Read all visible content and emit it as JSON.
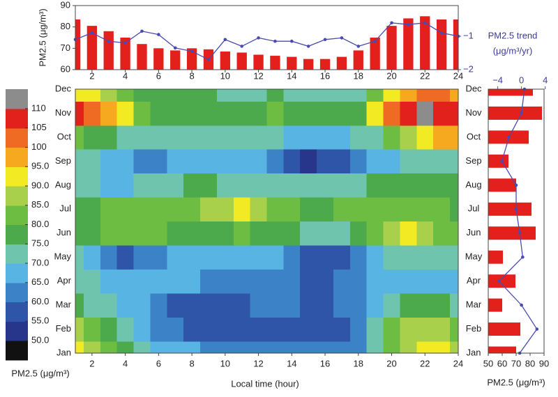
{
  "chart_data": [
    {
      "type": "bar",
      "x": [
        1,
        2,
        3,
        4,
        5,
        6,
        7,
        8,
        9,
        10,
        11,
        12,
        13,
        14,
        15,
        16,
        17,
        18,
        19,
        20,
        21,
        22,
        23,
        24
      ],
      "xlim": [
        1,
        24
      ],
      "xticks": [
        2,
        4,
        6,
        8,
        10,
        12,
        14,
        16,
        18,
        20,
        22,
        24
      ],
      "ylabel": "PM2.5 (μg/m³)",
      "ylim": [
        60,
        90
      ],
      "yticks": [
        60,
        70,
        80,
        90
      ],
      "y2lim": [
        -2,
        0
      ],
      "y2ticks": [
        {
          "value": -1,
          "label": "−1"
        },
        {
          "value": -2,
          "label": "−2"
        }
      ],
      "series": [
        {
          "color": "#e3201c",
          "values": [
            83.5,
            80.5,
            78,
            75,
            72,
            70,
            69,
            70,
            69.5,
            68.5,
            68,
            67,
            66.5,
            66,
            65,
            65,
            66,
            69,
            75,
            80.5,
            84,
            85,
            83.5,
            83.5
          ]
        },
        {
          "name": "PM2.5 trend",
          "unit": "(μg/m³/yr)",
          "type": "line",
          "axis": "y2",
          "color": "#4a4ab0",
          "values": [
            -1.1,
            -0.9,
            -1.15,
            -1.2,
            -0.85,
            -0.95,
            -1.35,
            -1.45,
            -1.7,
            -1.1,
            -1.3,
            -1.05,
            -1.15,
            -1.15,
            -1.3,
            -1.1,
            -1.05,
            -1.3,
            -1.15,
            -0.6,
            -0.65,
            -0.6,
            -0.9,
            -1.0
          ]
        }
      ]
    },
    {
      "type": "contour",
      "x": [
        1,
        2,
        3,
        4,
        5,
        6,
        7,
        8,
        9,
        10,
        11,
        12,
        13,
        14,
        15,
        16,
        17,
        18,
        19,
        20,
        21,
        22,
        23,
        24
      ],
      "xlim": [
        1,
        24
      ],
      "xticks": [
        2,
        4,
        6,
        8,
        10,
        12,
        14,
        16,
        18,
        20,
        22,
        24
      ],
      "xlabel": "Local time (hour)",
      "categories": [
        "Jan",
        "Feb",
        "Mar",
        "Apr",
        "May",
        "Jun",
        "Jul",
        "Aug",
        "Sep",
        "Oct",
        "Nov",
        "Dec"
      ],
      "z": [
        [
          92,
          88,
          80,
          76,
          72,
          68,
          66,
          65,
          64,
          63,
          64,
          64,
          63,
          62,
          62,
          62,
          63,
          64,
          72,
          82,
          88,
          91,
          90,
          86
        ],
        [
          86,
          82,
          76,
          72,
          68,
          64,
          60,
          58,
          58,
          58,
          58,
          57,
          57,
          57,
          56,
          57,
          58,
          62,
          72,
          80,
          85,
          86,
          85,
          82
        ],
        [
          76,
          74,
          70,
          68,
          66,
          62,
          58,
          58,
          58,
          58,
          58,
          60,
          60,
          60,
          58,
          58,
          60,
          62,
          68,
          72,
          75,
          76,
          75,
          74
        ],
        [
          72,
          70,
          68,
          66,
          66,
          66,
          66,
          66,
          64,
          64,
          64,
          64,
          64,
          60,
          58,
          58,
          62,
          64,
          66,
          68,
          68,
          68,
          68,
          68
        ],
        [
          71,
          66,
          60,
          58,
          60,
          64,
          66,
          68,
          68,
          67,
          66,
          66,
          65,
          60,
          57,
          57,
          58,
          64,
          68,
          70,
          70,
          71,
          72,
          72
        ],
        [
          76,
          78,
          80,
          82,
          82,
          80,
          78,
          78,
          78,
          78,
          80,
          79,
          78,
          76,
          74,
          74,
          74,
          76,
          80,
          86,
          90,
          88,
          84,
          80
        ],
        [
          76,
          78,
          80,
          82,
          82,
          82,
          82,
          84,
          86,
          88,
          90,
          86,
          82,
          80,
          78,
          78,
          80,
          82,
          82,
          84,
          84,
          82,
          80,
          78
        ],
        [
          72,
          70,
          68,
          68,
          70,
          72,
          74,
          75,
          75,
          74,
          74,
          72,
          70,
          70,
          72,
          72,
          72,
          74,
          76,
          76,
          76,
          76,
          76,
          76
        ],
        [
          72,
          70,
          67,
          65,
          64,
          64,
          65,
          66,
          66,
          66,
          66,
          65,
          62,
          57,
          54,
          55,
          57,
          62,
          66,
          68,
          70,
          72,
          72,
          72
        ],
        [
          82,
          78,
          76,
          74,
          72,
          70,
          70,
          70,
          70,
          70,
          70,
          70,
          70,
          68,
          67,
          67,
          68,
          70,
          74,
          80,
          86,
          92,
          96,
          97
        ],
        [
          105,
          104,
          98,
          90,
          82,
          78,
          78,
          78,
          77,
          77,
          76,
          78,
          82,
          77,
          76,
          76,
          76,
          78,
          90,
          100,
          106,
          112,
          108,
          106
        ],
        [
          92,
          90,
          86,
          82,
          78,
          76,
          76,
          76,
          75,
          72,
          70,
          72,
          76,
          74,
          72,
          72,
          72,
          74,
          82,
          92,
          98,
          100,
          100,
          98
        ]
      ],
      "colorbar": {
        "label": "PM2.5 (μg/m³)",
        "levels": [
          {
            "value": 50,
            "label": "50.0"
          },
          {
            "value": 55,
            "label": "55.0"
          },
          {
            "value": 60,
            "label": "60.0"
          },
          {
            "value": 65,
            "label": "65.0"
          },
          {
            "value": 70,
            "label": "70.0"
          },
          {
            "value": 75,
            "label": "75.0"
          },
          {
            "value": 80,
            "label": "80.0"
          },
          {
            "value": 85,
            "label": "85.0"
          },
          {
            "value": 90,
            "label": "90.0"
          },
          {
            "value": 95,
            "label": "95.0"
          },
          100,
          105,
          110
        ],
        "colors": [
          "#111111",
          "#27358a",
          "#2f55a8",
          "#3c82c6",
          "#58b4e2",
          "#6ec4ad",
          "#4caa4c",
          "#6dbd42",
          "#a9d04a",
          "#f2ea22",
          "#f6a81e",
          "#ef6a22",
          "#e2201c",
          "#8c8c8c"
        ]
      }
    },
    {
      "type": "bar",
      "orientation": "horizontal",
      "categories": [
        "Jan",
        "Feb",
        "Mar",
        "Apr",
        "May",
        "Jun",
        "Jul",
        "Aug",
        "Sep",
        "Oct",
        "Nov",
        "Dec"
      ],
      "xlabel": "PM2.5 (μg/m³)",
      "xlim": [
        50,
        90
      ],
      "xticks": [
        50,
        60,
        70,
        80,
        90
      ],
      "x2lim": [
        -5.6,
        3.8
      ],
      "x2ticks": [
        {
          "value": -4,
          "label": "−4"
        },
        0,
        4
      ],
      "series": [
        {
          "color": "#e3201c",
          "values": [
            70,
            73,
            60,
            69.5,
            60.5,
            84,
            81,
            70,
            64.5,
            79,
            88.5,
            82
          ]
        },
        {
          "type": "line",
          "axis": "x2",
          "color": "#4a4ab0",
          "values": [
            -0.3,
            2.6,
            0,
            -3.8,
            0.2,
            -0.3,
            -0.9,
            -0.9,
            -3.3,
            -2.1,
            0,
            0.5
          ]
        }
      ]
    }
  ]
}
